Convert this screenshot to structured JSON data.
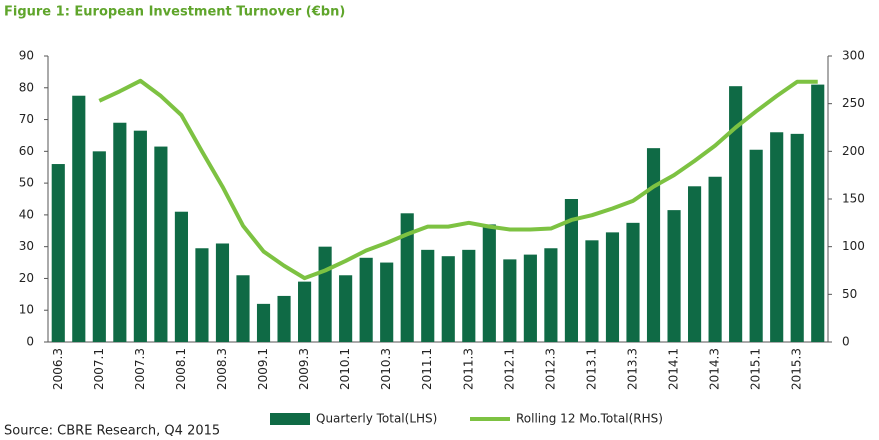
{
  "chart_data": {
    "type": "bar-line",
    "title": "Figure 1: European Investment Turnover (€bn)",
    "source": "Source: CBRE Research, Q4 2015",
    "categories": [
      "2006.3",
      null,
      "2007.1",
      null,
      "2007.3",
      null,
      "2008.1",
      null,
      "2008.3",
      null,
      "2009.1",
      null,
      "2009.3",
      null,
      "2010.1",
      null,
      "2010.3",
      null,
      "2011.1",
      null,
      "2011.3",
      null,
      "2012.1",
      null,
      "2012.3",
      null,
      "2013.1",
      null,
      "2013.3",
      null,
      "2014.1",
      null,
      "2014.3",
      null,
      "2015.1",
      null,
      "2015.3",
      null
    ],
    "series": [
      {
        "name": "Quarterly Total(LHS)",
        "type": "bar",
        "color": "#0f6a45",
        "values": [
          56,
          77.5,
          60,
          69,
          66.5,
          61.5,
          41,
          29.5,
          31,
          21,
          12,
          14.5,
          19,
          30,
          21,
          26.5,
          25,
          40.5,
          29,
          27,
          29,
          37,
          26,
          27.5,
          29.5,
          45,
          32,
          34.5,
          37.5,
          61,
          41.5,
          49,
          52,
          80.5,
          60.5,
          66,
          65.5,
          81
        ]
      },
      {
        "name": "Rolling 12 Mo.Total(RHS)",
        "type": "line",
        "axis": "y2",
        "color": "#7dc242",
        "values": [
          null,
          null,
          253,
          263,
          274,
          258,
          238,
          200,
          163,
          122,
          95,
          80,
          67,
          75,
          85,
          96,
          104,
          113,
          121,
          121,
          125,
          121,
          118,
          118,
          119,
          128,
          133,
          140,
          148,
          163,
          175,
          190,
          206,
          225,
          242,
          258,
          273,
          273
        ]
      }
    ],
    "ylim": [
      0,
      90
    ],
    "yticks": [
      0,
      10,
      20,
      30,
      40,
      50,
      60,
      70,
      80,
      90
    ],
    "y2lim": [
      0,
      300
    ],
    "y2ticks": [
      0,
      50,
      100,
      150,
      200,
      250,
      300
    ],
    "grid": false
  }
}
